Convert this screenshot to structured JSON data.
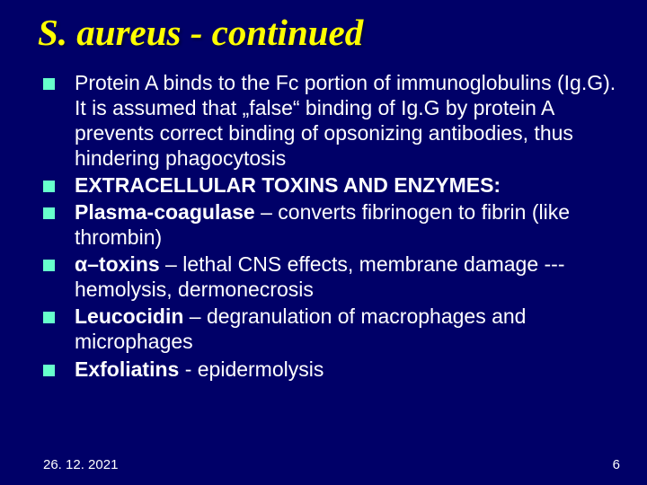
{
  "background_color": "#000068",
  "title": {
    "text": "S. aureus - continued",
    "color": "#ffff00",
    "fontsize": 41,
    "italic": true,
    "bold": true
  },
  "bullet_color": "#66ffcc",
  "body_color": "#ffffff",
  "body_fontsize": 23,
  "bullets": [
    {
      "runs": [
        {
          "t": "Protein A binds to the Fc portion of immunoglobulins (Ig.G). It is assumed that „false“ binding of Ig.G by protein A prevents correct binding of opsonizing antibodies, thus hindering phagocytosis",
          "bold": false
        }
      ]
    },
    {
      "runs": [
        {
          "t": "EXTRACELLULAR TOXINS AND ENZYMES:",
          "bold": true
        }
      ]
    },
    {
      "runs": [
        {
          "t": "Plasma-coagulase",
          "bold": true
        },
        {
          "t": " – converts fibrinogen to fibrin (like thrombin)",
          "bold": false
        }
      ]
    },
    {
      "runs": [
        {
          "t": "α–toxins",
          "bold": true
        },
        {
          "t": " – lethal CNS effects, membrane damage --- hemolysis, dermonecrosis",
          "bold": false
        }
      ]
    },
    {
      "runs": [
        {
          "t": "Leucocidin",
          "bold": true
        },
        {
          "t": " – degranulation of macrophages and microphages",
          "bold": false
        }
      ]
    },
    {
      "runs": [
        {
          "t": "Exfoliatins",
          "bold": true
        },
        {
          "t": " - epidermolysis",
          "bold": false
        }
      ]
    }
  ],
  "footer": {
    "date": "26. 12. 2021",
    "page": "6",
    "color": "#ffffff",
    "fontsize": 15
  }
}
